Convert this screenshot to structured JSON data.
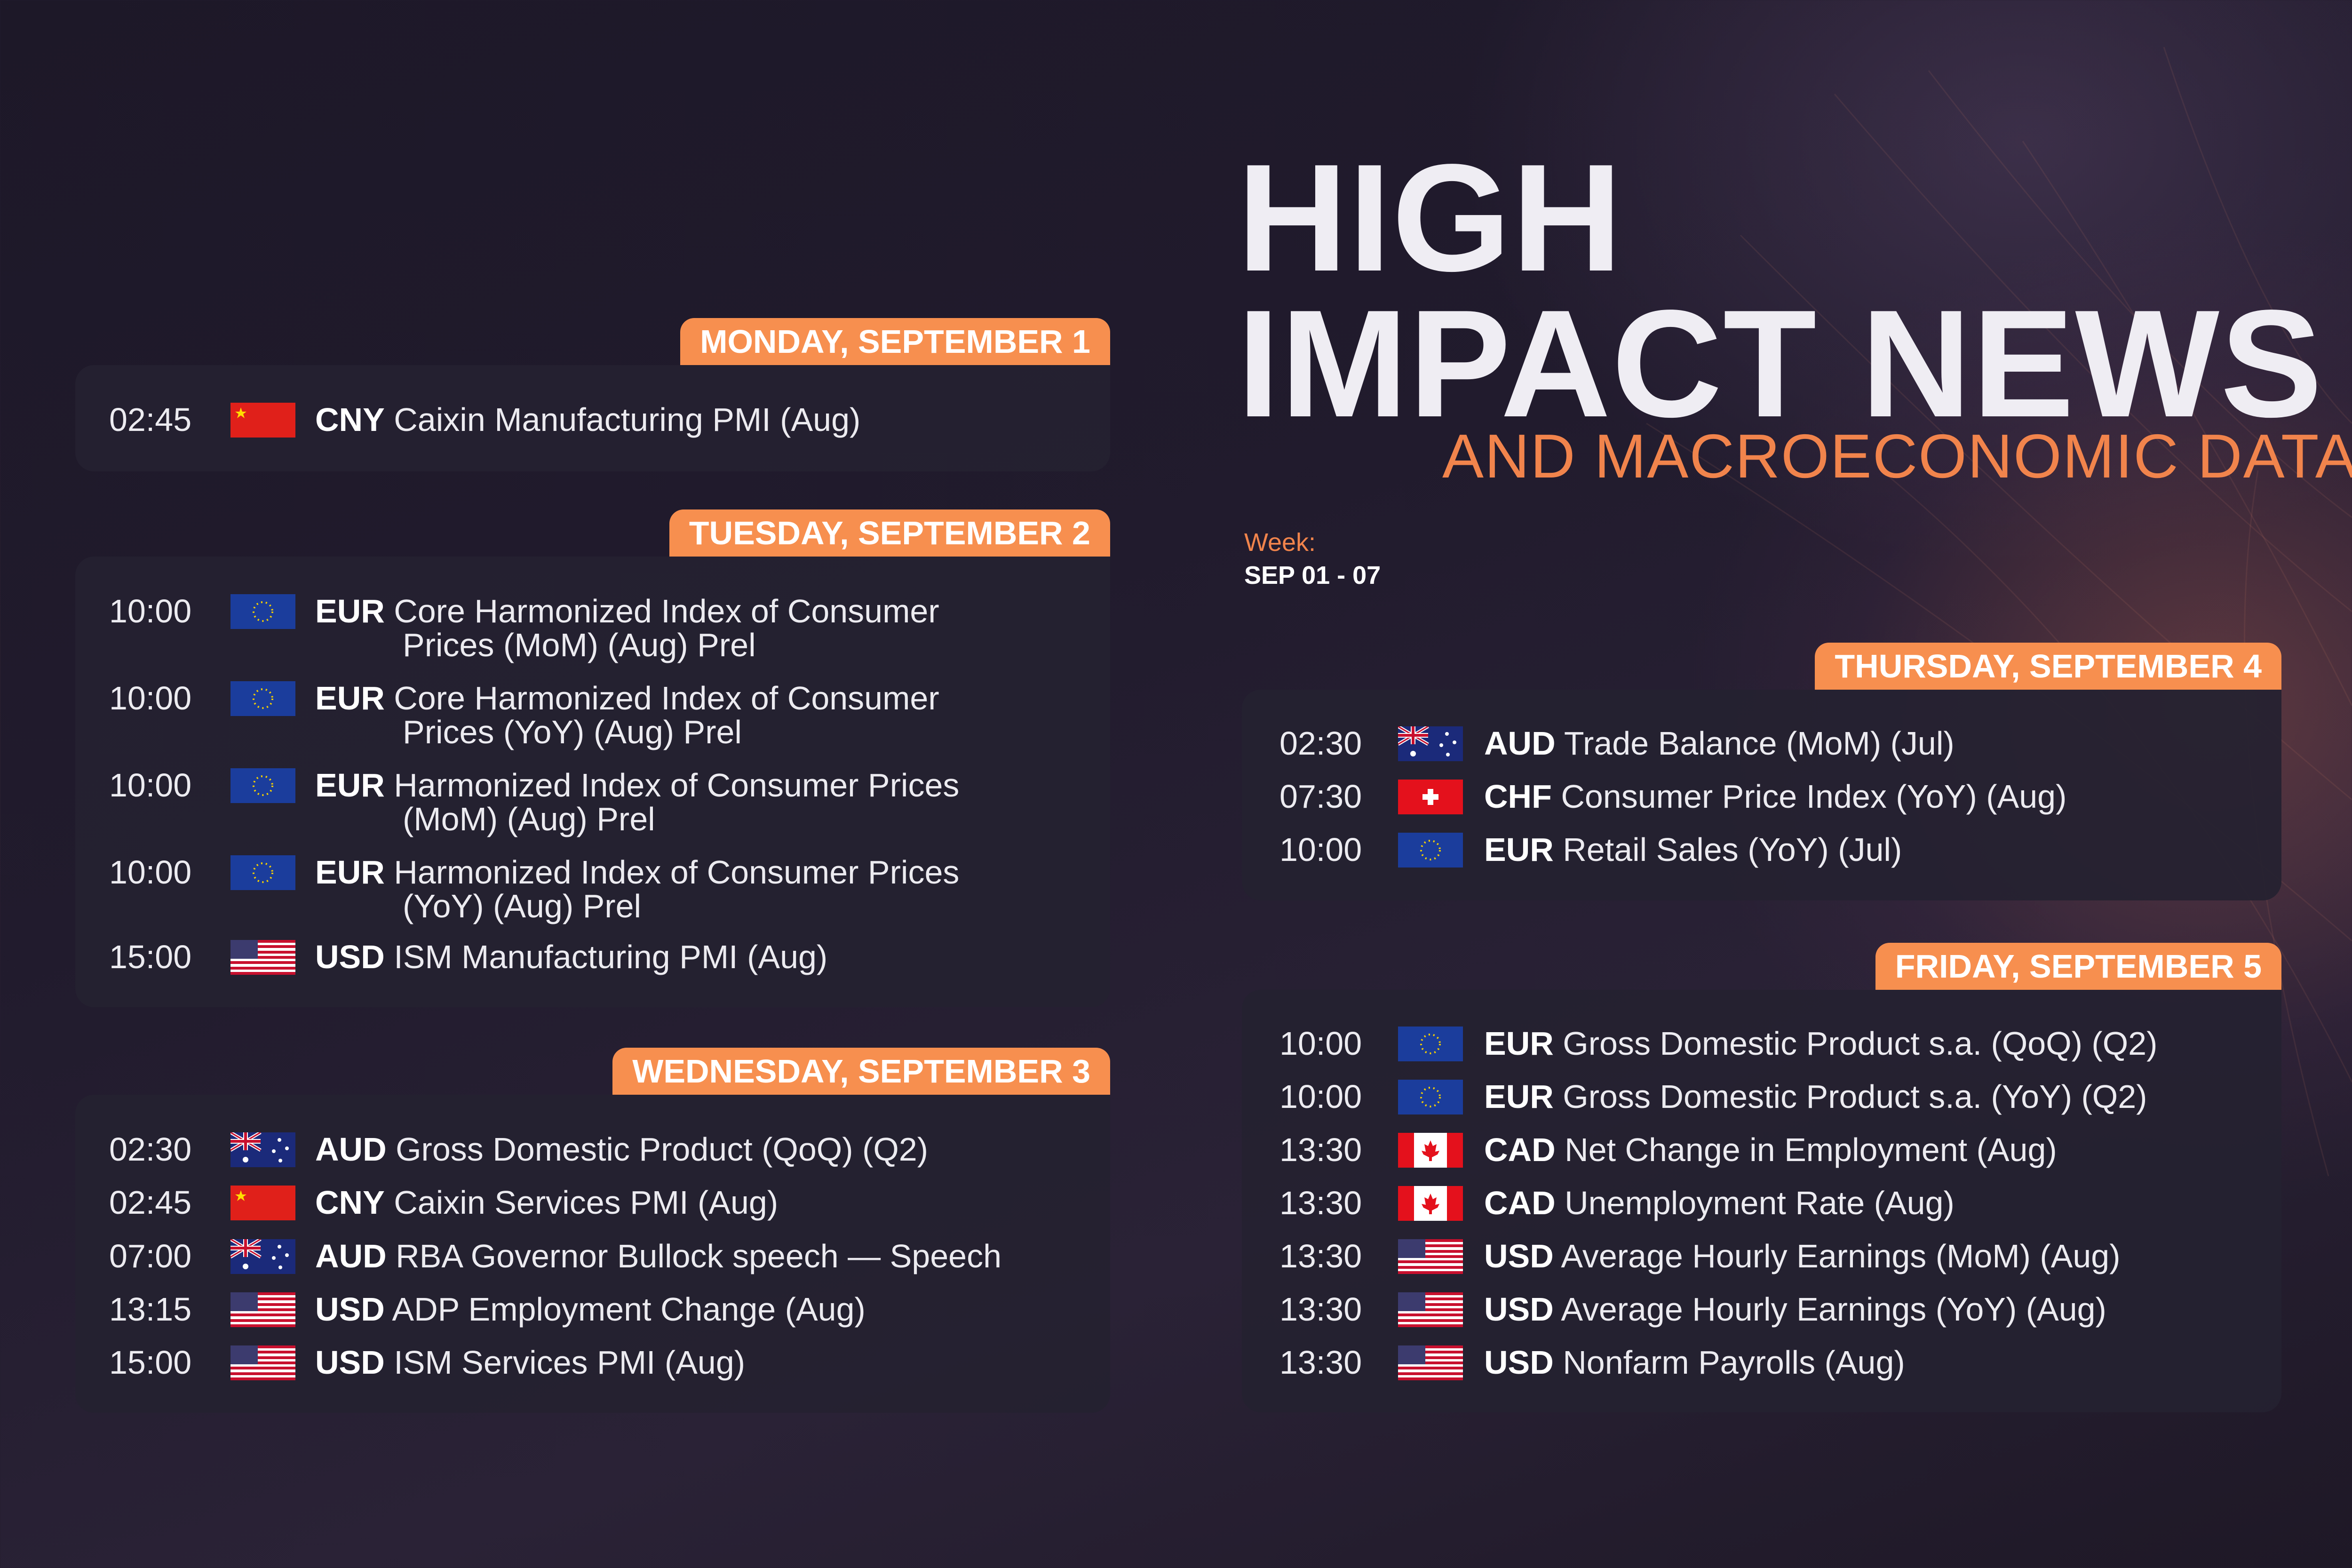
{
  "header": {
    "title_line1": "HIGH",
    "title_line2": "IMPACT NEWS",
    "subtitle": "AND MACROECONOMIC DATA",
    "week_label": "Week:",
    "week_range": "SEP 01 - 07"
  },
  "colors": {
    "accent": "#f78f4f",
    "accent_text": "#f1844c",
    "panel": "#252130",
    "text": "#ecebf0"
  },
  "days": [
    {
      "label": "MONDAY, SEPTEMBER 1",
      "events": [
        {
          "time": "02:45",
          "flag": "cn-flag-icon",
          "currency": "CNY",
          "title": "Caixin Manufacturing PMI (Aug)"
        }
      ]
    },
    {
      "label": "TUESDAY, SEPTEMBER 2",
      "events": [
        {
          "time": "10:00",
          "flag": "eu-flag-icon",
          "currency": "EUR",
          "title": "Core Harmonized Index of Consumer",
          "title2": "Prices (MoM) (Aug) Prel"
        },
        {
          "time": "10:00",
          "flag": "eu-flag-icon",
          "currency": "EUR",
          "title": "Core Harmonized Index of Consumer",
          "title2": "Prices (YoY) (Aug) Prel"
        },
        {
          "time": "10:00",
          "flag": "eu-flag-icon",
          "currency": "EUR",
          "title": "Harmonized Index of Consumer Prices",
          "title2": "(MoM) (Aug) Prel"
        },
        {
          "time": "10:00",
          "flag": "eu-flag-icon",
          "currency": "EUR",
          "title": "Harmonized Index of Consumer Prices",
          "title2": "(YoY) (Aug) Prel"
        },
        {
          "time": "15:00",
          "flag": "us-flag-icon",
          "currency": "USD",
          "title": "ISM Manufacturing PMI (Aug)"
        }
      ]
    },
    {
      "label": "WEDNESDAY, SEPTEMBER 3",
      "events": [
        {
          "time": "02:30",
          "flag": "au-flag-icon",
          "currency": "AUD",
          "title": "Gross Domestic Product (QoQ) (Q2)"
        },
        {
          "time": "02:45",
          "flag": "cn-flag-icon",
          "currency": "CNY",
          "title": "Caixin Services PMI (Aug)"
        },
        {
          "time": "07:00",
          "flag": "au-flag-icon",
          "currency": "AUD",
          "title": "RBA Governor Bullock speech — Speech"
        },
        {
          "time": "13:15",
          "flag": "us-flag-icon",
          "currency": "USD",
          "title": "ADP Employment Change (Aug)"
        },
        {
          "time": "15:00",
          "flag": "us-flag-icon",
          "currency": "USD",
          "title": "ISM Services PMI (Aug)"
        }
      ]
    },
    {
      "label": "THURSDAY, SEPTEMBER 4",
      "events": [
        {
          "time": "02:30",
          "flag": "au-flag-icon",
          "currency": "AUD",
          "title": "Trade Balance (MoM) (Jul)"
        },
        {
          "time": "07:30",
          "flag": "ch-flag-icon",
          "currency": "CHF",
          "title": "Consumer Price Index (YoY) (Aug)"
        },
        {
          "time": "10:00",
          "flag": "eu-flag-icon",
          "currency": "EUR",
          "title": "Retail Sales (YoY) (Jul)"
        }
      ]
    },
    {
      "label": "FRIDAY, SEPTEMBER 5",
      "events": [
        {
          "time": "10:00",
          "flag": "eu-flag-icon",
          "currency": "EUR",
          "title": "Gross Domestic Product s.a. (QoQ) (Q2)"
        },
        {
          "time": "10:00",
          "flag": "eu-flag-icon",
          "currency": "EUR",
          "title": "Gross Domestic Product s.a. (YoY) (Q2)"
        },
        {
          "time": "13:30",
          "flag": "ca-flag-icon",
          "currency": "CAD",
          "title": "Net Change in Employment (Aug)"
        },
        {
          "time": "13:30",
          "flag": "ca-flag-icon",
          "currency": "CAD",
          "title": "Unemployment Rate (Aug)"
        },
        {
          "time": "13:30",
          "flag": "us-flag-icon",
          "currency": "USD",
          "title": "Average Hourly Earnings (MoM) (Aug)"
        },
        {
          "time": "13:30",
          "flag": "us-flag-icon",
          "currency": "USD",
          "title": "Average Hourly Earnings (YoY) (Aug)"
        },
        {
          "time": "13:30",
          "flag": "us-flag-icon",
          "currency": "USD",
          "title": "Nonfarm Payrolls (Aug)"
        }
      ]
    }
  ]
}
